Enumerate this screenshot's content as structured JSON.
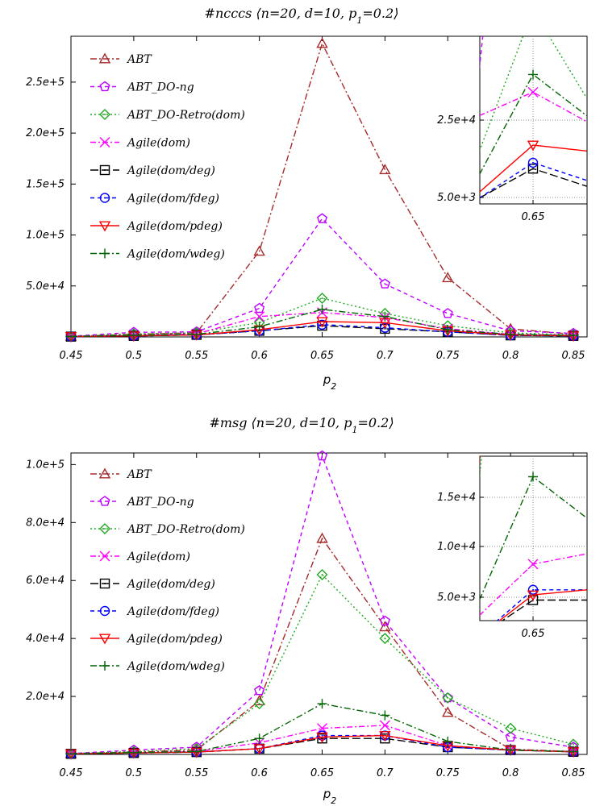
{
  "chart_data": [
    {
      "type": "line",
      "title": "#ncccs ⟨n=20, d=10, p₁=0.2⟩",
      "title_parts": {
        "pre": "#ncccs ⟨n=20, d=10, p",
        "sub": "1",
        "post": "=0.2⟩"
      },
      "xlabel": "p2",
      "xlabel_parts": {
        "main": "p",
        "sub": "2"
      },
      "x": [
        0.45,
        0.5,
        0.55,
        0.6,
        0.65,
        0.7,
        0.75,
        0.8,
        0.85
      ],
      "x_tick_labels": [
        "0.45",
        "0.5",
        "0.55",
        "0.6",
        "0.65",
        "0.7",
        "0.75",
        "0.8",
        "0.85"
      ],
      "ylim": [
        0,
        295000
      ],
      "y_ticks": [
        50000,
        100000,
        150000,
        200000,
        250000
      ],
      "y_tick_labels": [
        "5.0e+4",
        "1.0e+5",
        "1.5e+5",
        "2.0e+5",
        "2.5e+5"
      ],
      "legend_position": "top-left",
      "series": [
        {
          "name": "ABT",
          "color": "#a52a2a",
          "dash": "8,3,2,3",
          "marker": "triangle",
          "values": [
            500,
            2500,
            4000,
            84000,
            288000,
            164000,
            58000,
            8000,
            2500
          ]
        },
        {
          "name": "ABT_DO-ng",
          "color": "#c000ff",
          "dash": "5,4",
          "marker": "pentagon",
          "values": [
            600,
            4500,
            5000,
            28000,
            116000,
            52000,
            23000,
            6000,
            3500
          ]
        },
        {
          "name": "ABT_DO-Retro(dom)",
          "color": "#22aa22",
          "dash": "2,3",
          "marker": "diamond",
          "values": [
            500,
            3000,
            4000,
            14000,
            38000,
            23000,
            11000,
            4000,
            2000
          ]
        },
        {
          "name": "Agile(dom)",
          "color": "#ff00ff",
          "dash": "7,3,2,3",
          "marker": "cross",
          "values": [
            400,
            1500,
            3000,
            20000,
            24000,
            19000,
            8000,
            2500,
            1500
          ]
        },
        {
          "name": "Agile(dom/deg)",
          "color": "#000000",
          "dash": "10,4",
          "marker": "square",
          "values": [
            300,
            1000,
            2000,
            6000,
            11000,
            8000,
            5000,
            1500,
            1000
          ]
        },
        {
          "name": "Agile(dom/fdeg)",
          "color": "#0000ff",
          "dash": "5,4",
          "marker": "circle",
          "values": [
            300,
            1000,
            2000,
            6000,
            12000,
            9000,
            5000,
            1500,
            1000
          ]
        },
        {
          "name": "Agile(dom/pdeg)",
          "color": "#ff0000",
          "dash": "",
          "marker": "triangle-down",
          "values": [
            300,
            1000,
            2000,
            7000,
            15000,
            14000,
            6000,
            2000,
            1000
          ]
        },
        {
          "name": "Agile(dom/wdeg)",
          "color": "#006400",
          "dash": "8,3,2,3",
          "marker": "plus",
          "values": [
            400,
            1500,
            2500,
            10000,
            27000,
            20000,
            7000,
            2500,
            1500
          ]
        }
      ],
      "inset": {
        "x_tick_labels": [
          "0.65"
        ],
        "y_tick_labels": [
          "5.0e+3",
          "2.5e+4"
        ]
      }
    },
    {
      "type": "line",
      "title": "#msg ⟨n=20, d=10, p₁=0.2⟩",
      "title_parts": {
        "pre": "#msg ⟨n=20, d=10, p",
        "sub": "1",
        "post": "=0.2⟩"
      },
      "xlabel": "p2",
      "xlabel_parts": {
        "main": "p",
        "sub": "2"
      },
      "x": [
        0.45,
        0.5,
        0.55,
        0.6,
        0.65,
        0.7,
        0.75,
        0.8,
        0.85
      ],
      "x_tick_labels": [
        "0.45",
        "0.5",
        "0.55",
        "0.6",
        "0.65",
        "0.7",
        "0.75",
        "0.8",
        "0.85"
      ],
      "ylim": [
        0,
        104000
      ],
      "y_ticks": [
        20000,
        40000,
        60000,
        80000,
        100000
      ],
      "y_tick_labels": [
        "2.0e+4",
        "4.0e+4",
        "6.0e+4",
        "8.0e+4",
        "1.0e+5"
      ],
      "legend_position": "top-left",
      "series": [
        {
          "name": "ABT",
          "color": "#a52a2a",
          "dash": "8,3,2,3",
          "marker": "triangle",
          "values": [
            300,
            800,
            1500,
            18500,
            74500,
            44000,
            14500,
            1800,
            1000
          ]
        },
        {
          "name": "ABT_DO-ng",
          "color": "#c000ff",
          "dash": "5,4",
          "marker": "pentagon",
          "values": [
            300,
            1500,
            2500,
            22000,
            103000,
            46000,
            19500,
            6000,
            2500
          ]
        },
        {
          "name": "ABT_DO-Retro(dom)",
          "color": "#22aa22",
          "dash": "2,3",
          "marker": "diamond",
          "values": [
            300,
            1000,
            2000,
            17500,
            62000,
            40000,
            19500,
            9000,
            3500
          ]
        },
        {
          "name": "Agile(dom)",
          "color": "#ff00ff",
          "dash": "7,3,2,3",
          "marker": "cross",
          "values": [
            200,
            500,
            1000,
            4000,
            9000,
            10000,
            3000,
            1500,
            1000
          ]
        },
        {
          "name": "Agile(dom/deg)",
          "color": "#000000",
          "dash": "10,4",
          "marker": "square",
          "values": [
            200,
            500,
            800,
            2000,
            5500,
            5500,
            2500,
            1500,
            900
          ]
        },
        {
          "name": "Agile(dom/fdeg)",
          "color": "#0000ff",
          "dash": "5,4",
          "marker": "circle",
          "values": [
            200,
            500,
            800,
            2000,
            6500,
            6500,
            2500,
            1500,
            900
          ]
        },
        {
          "name": "Agile(dom/pdeg)",
          "color": "#ff0000",
          "dash": "",
          "marker": "triangle-down",
          "values": [
            200,
            500,
            800,
            2000,
            6000,
            6500,
            3000,
            1500,
            900
          ]
        },
        {
          "name": "Agile(dom/wdeg)",
          "color": "#006400",
          "dash": "8,3,2,3",
          "marker": "plus",
          "values": [
            200,
            600,
            1000,
            5500,
            17500,
            13500,
            4500,
            1500,
            1000
          ]
        }
      ],
      "inset": {
        "x_tick_labels": [
          "0.65"
        ],
        "y_tick_labels": [
          "5.0e+3",
          "1.0e+4",
          "1.5e+4"
        ]
      }
    }
  ]
}
